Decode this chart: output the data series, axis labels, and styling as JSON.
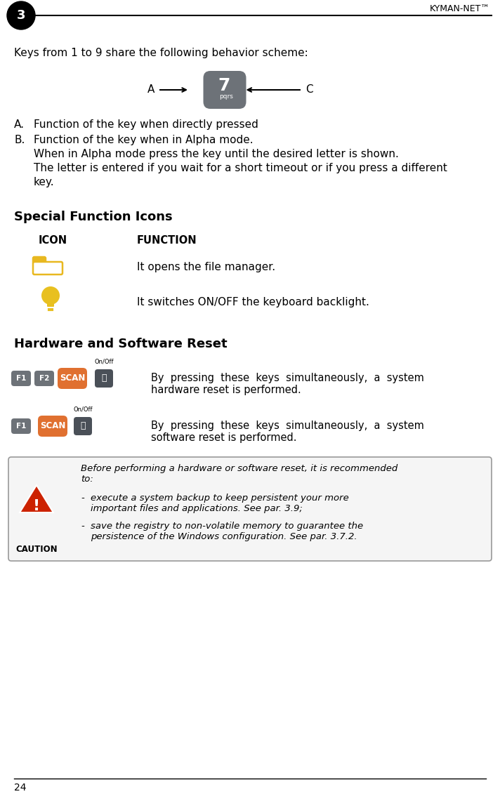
{
  "title_right": "KYMAN-NET™",
  "page_num": "3",
  "page_bottom": "24",
  "bg_color": "#ffffff",
  "section1_text": "Keys from 1 to 9 share the following behavior scheme:",
  "diagram_A": "A",
  "diagram_C": "C",
  "section2_title": "Special Function Icons",
  "icon_col": "ICON",
  "func_col": "FUNCTION",
  "icon1_text": "It opens the file manager.",
  "icon2_text": "It switches ON/OFF the keyboard backlight.",
  "section3_title": "Hardware and Software Reset",
  "hw_reset_text": "By pressing these keys simultaneously, a system\nhardware reset is performed.",
  "sw_reset_text": "By pressing these keys simultaneously, a system\nsoftware reset is performed.",
  "caution_title": "CAUTION",
  "caution_intro": "Before performing a hardware or software reset, it is recommended\nto:",
  "caution_item1": "execute a system backup to keep persistent your more\nimportant files and applications. See par. 3.9;",
  "caution_item2": "save the registry to non-volatile memory to guarantee the\npersistence of the Windows configuration. See par. 3.7.2.",
  "key_color_gray": "#6d7278",
  "key_color_orange": "#e07030",
  "key_color_darkgray": "#4a5058",
  "folder_icon_color": "#e8b820",
  "bulb_icon_color": "#e8c020",
  "caution_icon_color": "#cc2200"
}
